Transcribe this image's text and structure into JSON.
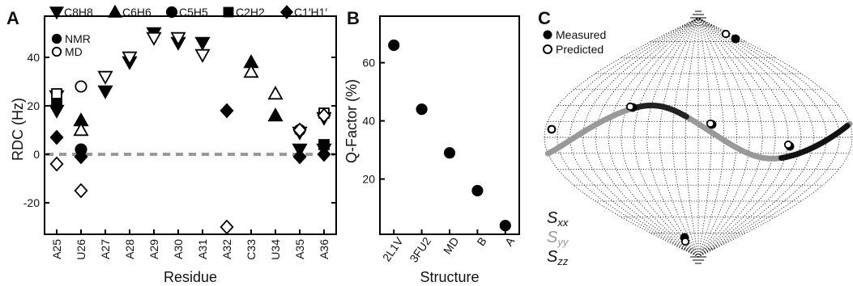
{
  "panels": {
    "a": "A",
    "b": "B",
    "c": "C"
  },
  "chart_data": [
    {
      "type": "scatter",
      "xlabel": "Residue",
      "ylabel": "RDC (Hz)",
      "categories": [
        "A25",
        "U26",
        "A27",
        "A28",
        "A29",
        "A30",
        "A31",
        "A32",
        "C33",
        "U34",
        "A35",
        "A36"
      ],
      "ylim": [
        -33,
        57
      ],
      "yticks": [
        "-20",
        "0",
        "20",
        "40"
      ],
      "yticks_values": [
        -20,
        0,
        20,
        40
      ],
      "zero_line": 0,
      "legend_markers": [
        {
          "label": "C8H8",
          "marker": "triangle-down"
        },
        {
          "label": "C6H6",
          "marker": "triangle-up"
        },
        {
          "label": "C5H5",
          "marker": "circle"
        },
        {
          "label": "C2H2",
          "marker": "square"
        },
        {
          "label": "C1′H1′",
          "marker": "diamond"
        }
      ],
      "legend_fill": [
        {
          "label": "NMR",
          "fill": "filled"
        },
        {
          "label": "MD",
          "fill": "open"
        }
      ],
      "series": [
        {
          "marker": "triangle-down",
          "fill": "filled",
          "points": [
            [
              0,
              18
            ],
            [
              2,
              26
            ],
            [
              3,
              38
            ],
            [
              4,
              50
            ],
            [
              5,
              46
            ],
            [
              6,
              46
            ],
            [
              10,
              2
            ],
            [
              11,
              2
            ]
          ]
        },
        {
          "marker": "triangle-down",
          "fill": "open",
          "points": [
            [
              0,
              24
            ],
            [
              2,
              32
            ],
            [
              3,
              40
            ],
            [
              4,
              48
            ],
            [
              5,
              48
            ],
            [
              6,
              41
            ],
            [
              10,
              9
            ],
            [
              11,
              15
            ]
          ]
        },
        {
          "marker": "triangle-up",
          "fill": "filled",
          "points": [
            [
              1,
              14
            ],
            [
              8,
              38
            ],
            [
              9,
              16
            ]
          ]
        },
        {
          "marker": "triangle-up",
          "fill": "open",
          "points": [
            [
              1,
              10
            ],
            [
              8,
              34
            ],
            [
              9,
              25
            ]
          ]
        },
        {
          "marker": "circle",
          "fill": "filled",
          "points": [
            [
              1,
              2
            ]
          ]
        },
        {
          "marker": "circle",
          "fill": "open",
          "points": [
            [
              1,
              28
            ],
            [
              10,
              10
            ]
          ]
        },
        {
          "marker": "square",
          "fill": "filled",
          "points": [
            [
              0,
              21
            ],
            [
              11,
              4
            ]
          ]
        },
        {
          "marker": "square",
          "fill": "open",
          "points": [
            [
              0,
              25
            ],
            [
              11,
              17
            ]
          ]
        },
        {
          "marker": "diamond",
          "fill": "filled",
          "points": [
            [
              0,
              7
            ],
            [
              1,
              -1
            ],
            [
              7,
              18
            ],
            [
              10,
              -1
            ],
            [
              11,
              0
            ]
          ]
        },
        {
          "marker": "diamond",
          "fill": "open",
          "points": [
            [
              0,
              -4
            ],
            [
              1,
              -15
            ],
            [
              7,
              -30
            ],
            [
              10,
              10
            ],
            [
              11,
              16
            ]
          ]
        }
      ]
    },
    {
      "type": "scatter",
      "xlabel": "Structure",
      "ylabel": "Q-Factor (%)",
      "categories": [
        "2L1V",
        "3FU2",
        "MD",
        "B",
        "A"
      ],
      "values": [
        66,
        44,
        29,
        16,
        4
      ],
      "ylim": [
        1,
        76
      ],
      "yticks": [
        "20",
        "40",
        "60"
      ],
      "yticks_values": [
        20,
        40,
        60
      ]
    },
    {
      "type": "scatter",
      "projection": "sinusoidal",
      "legend": [
        {
          "label": "Measured",
          "fill": "filled"
        },
        {
          "label": "Predicted",
          "fill": "open"
        }
      ],
      "axis_labels": [
        "S",
        "S",
        "S"
      ],
      "axis_subscripts": [
        "xx",
        "yy",
        "zz"
      ],
      "series_colors": [
        "#222222",
        "#999999",
        "#111111"
      ]
    }
  ]
}
